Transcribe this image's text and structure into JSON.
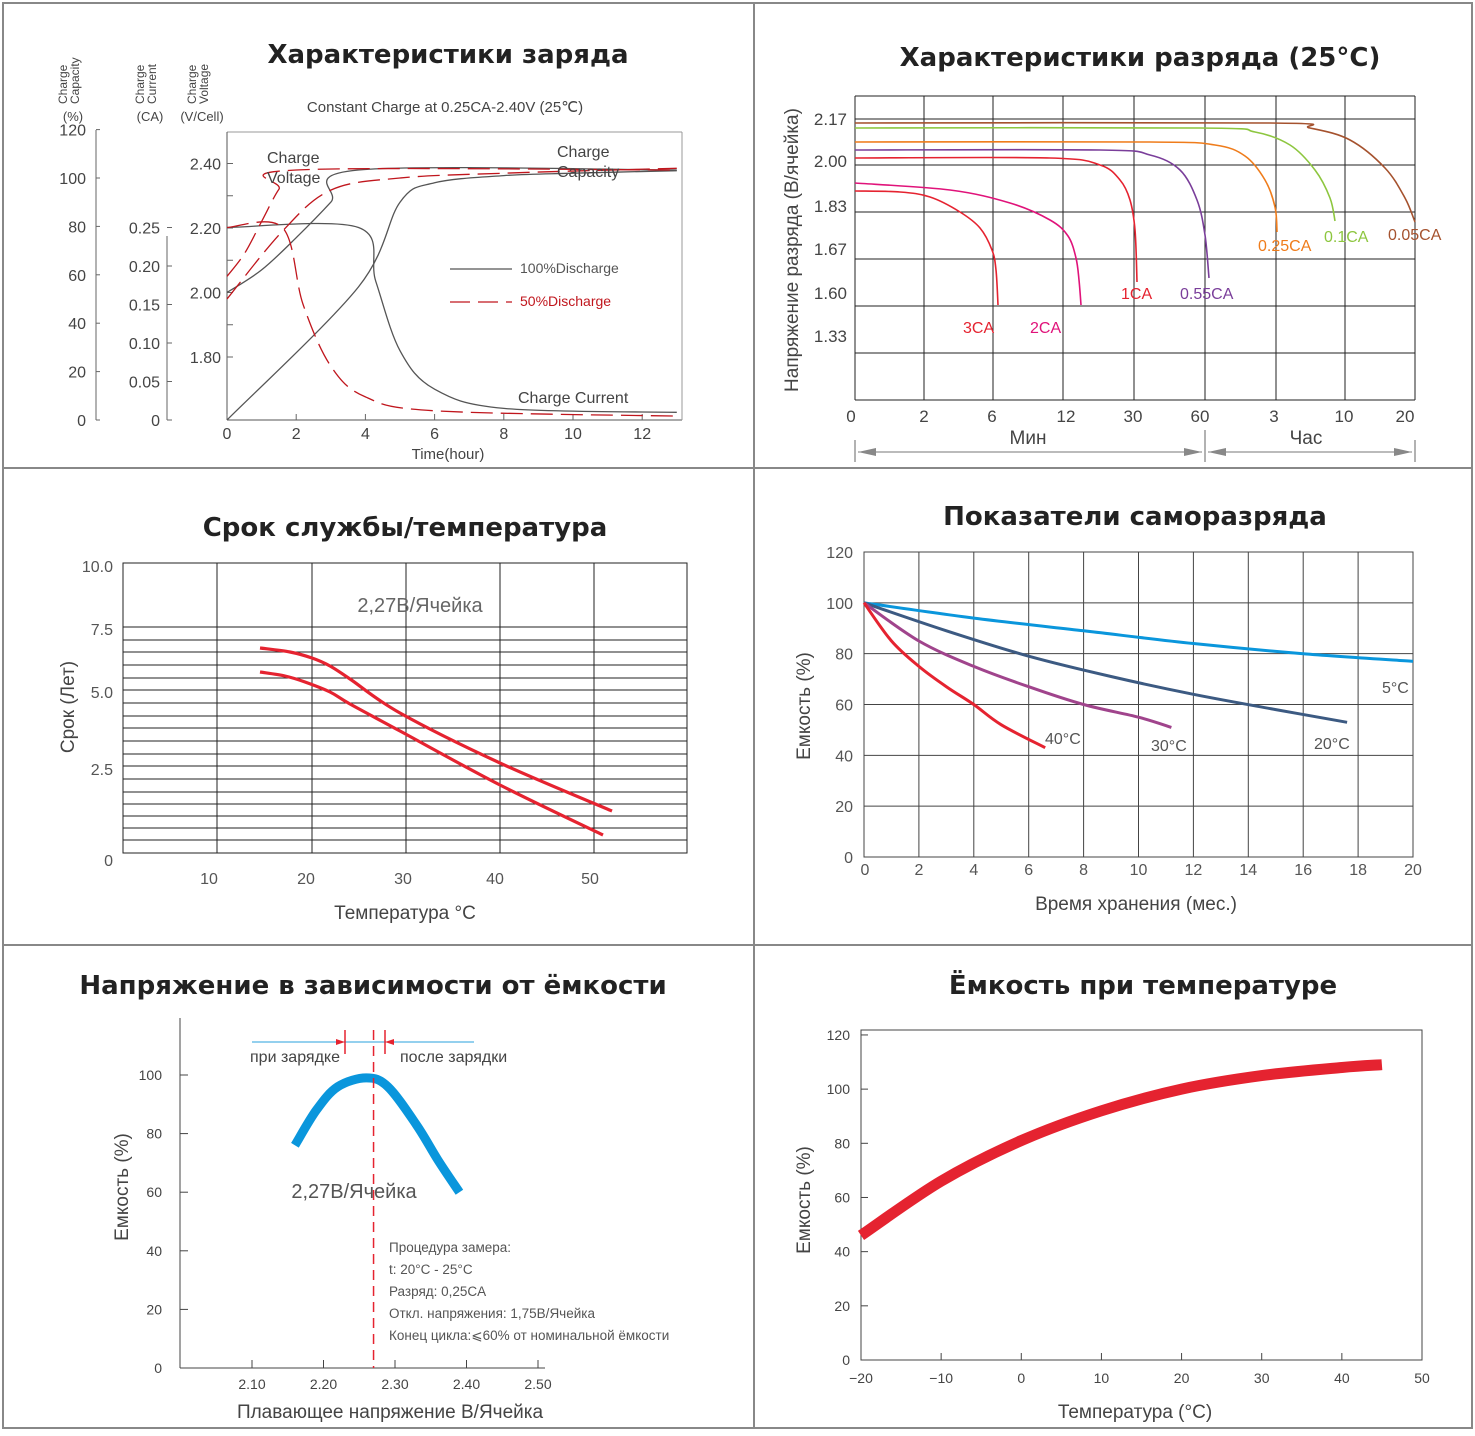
{
  "colors": {
    "border": "#888888",
    "grid": "#222222",
    "red": "#e52330",
    "blue": "#0a96dc",
    "ink": "#444444"
  },
  "panels": {
    "charge": {
      "title": "Характеристики заряда",
      "subtitle": "Constant Charge at 0.25CA-2.40V  (25℃)",
      "axis_headers": [
        {
          "lines": [
            "Charge",
            "Capacity",
            "(%)"
          ]
        },
        {
          "lines": [
            "Charge",
            "Current",
            "(CA)"
          ]
        },
        {
          "lines": [
            "Charge",
            "Voltage",
            "(V/Cell)"
          ]
        }
      ],
      "xlabel": "Time(hour)",
      "curve_labels": {
        "voltage": [
          "Charge",
          "Voltage"
        ],
        "capacity": [
          "Charge",
          "Capacity"
        ],
        "current": "Charge Current"
      },
      "legend": [
        {
          "label": "100%Discharge",
          "color": "#555555",
          "dash": false
        },
        {
          "label": "50%Discharge",
          "color": "#c0161d",
          "dash": true
        }
      ]
    },
    "discharge": {
      "title": "Характеристики разряда (25°C)",
      "ylabel": "Напряжение разряда (В/ячейка)",
      "ticks_y": [
        "2.17",
        "2.00",
        "1.83",
        "1.67",
        "1.60",
        "1.33"
      ],
      "ticks_x": [
        "0",
        "2",
        "6",
        "12",
        "30",
        "60",
        "3",
        "10",
        "20"
      ],
      "span_min": "Мин",
      "span_hr": "Час"
    },
    "life": {
      "title": "Срок службы/температура",
      "ylabel": "Срок (Лет)",
      "xlabel": "Температура °C",
      "annotation": "2,27В/Ячейка"
    },
    "selfdis": {
      "title": "Показатели саморазряда",
      "ylabel": "Емкость (%)",
      "xlabel": "Время хранения (мес.)"
    },
    "float": {
      "title": "Напряжение в зависимости от ёмкости",
      "ylabel": "Емкость (%)",
      "xlabel": "Плавающее напряжение В/Ячейка",
      "label_left": "при зарядке",
      "label_right": "после зарядки",
      "annotation": "2,27В/Ячейка",
      "notes": [
        "Процедура замера:",
        "t: 20°C - 25°C",
        "Разряд: 0,25CA",
        "Откл. напряжения: 1,75В/Ячейка",
        "Конец цикла:⩽60% от номинальной ёмкости"
      ]
    },
    "temp": {
      "title": "Ёмкость при температуре",
      "ylabel": "Емкость (%)",
      "xlabel": "Температура (°C)"
    }
  },
  "chart_data": [
    {
      "id": "charge",
      "type": "line",
      "title": "Характеристики заряда",
      "xlabel": "Time(hour)",
      "xlim": [
        0,
        13
      ],
      "x_ticks": [
        0,
        2,
        4,
        6,
        8,
        10,
        12
      ],
      "y_axes": [
        {
          "name": "Charge Capacity (%)",
          "ticks": [
            0,
            20,
            40,
            60,
            80,
            100,
            120
          ]
        },
        {
          "name": "Charge Current (CA)",
          "ticks": [
            "0",
            "0.05",
            "0.10",
            "0.15",
            "0.20",
            "0.25"
          ]
        },
        {
          "name": "Charge Voltage (V/Cell)",
          "ticks": [
            "1.80",
            "2.00",
            "2.20",
            "2.40"
          ]
        }
      ],
      "series": [
        {
          "name": "100%Discharge",
          "role": "Charge Voltage",
          "x": [
            0,
            1,
            2,
            3,
            3.8,
            13
          ],
          "y": [
            2.0,
            2.07,
            2.17,
            2.28,
            2.38,
            2.38
          ]
        },
        {
          "name": "100%Discharge",
          "role": "Charge Current",
          "x": [
            0,
            3.8,
            4.3,
            5,
            6,
            8,
            13
          ],
          "y": [
            0.25,
            0.25,
            0.18,
            0.09,
            0.04,
            0.015,
            0.01
          ]
        },
        {
          "name": "100%Discharge",
          "role": "Charge Capacity",
          "x": [
            0,
            3.8,
            5,
            6,
            8,
            10,
            13
          ],
          "y": [
            0,
            55,
            90,
            98,
            101,
            102,
            103
          ]
        },
        {
          "name": "50%Discharge",
          "role": "Charge Voltage",
          "x": [
            0,
            0.5,
            1,
            1.5,
            2,
            13
          ],
          "y": [
            2.05,
            2.12,
            2.22,
            2.32,
            2.38,
            2.38
          ]
        },
        {
          "name": "50%Discharge",
          "role": "Charge Current",
          "x": [
            0,
            1.6,
            2.2,
            3,
            4,
            6,
            13
          ],
          "y": [
            0.25,
            0.25,
            0.15,
            0.07,
            0.03,
            0.012,
            0.005
          ]
        },
        {
          "name": "50%Discharge",
          "role": "Charge Capacity",
          "x": [
            0,
            1.6,
            3,
            5,
            8,
            13
          ],
          "y": [
            50,
            78,
            95,
            100,
            102,
            104
          ]
        }
      ]
    },
    {
      "id": "discharge",
      "type": "line",
      "title": "Характеристики разряда (25°C)",
      "ylabel": "Напряжение разряда (В/ячейка)",
      "x_ticks": [
        "0",
        "2",
        "6",
        "12",
        "30",
        "60",
        "3",
        "10",
        "20"
      ],
      "x_units": [
        "Мин",
        "Мин",
        "Мин",
        "Мин",
        "Мин",
        "Мин",
        "Час",
        "Час",
        "Час"
      ],
      "y_ticks": [
        "2.17",
        "2.00",
        "1.83",
        "1.67",
        "1.60",
        "1.33"
      ],
      "series": [
        {
          "name": "3CA",
          "start_v": 1.89,
          "end_v": 1.6,
          "end_x": "6 Мин"
        },
        {
          "name": "2CA",
          "start_v": 1.91,
          "end_v": 1.6,
          "end_x": "13 Мин"
        },
        {
          "name": "1CA",
          "start_v": 2.01,
          "end_v": 1.67,
          "end_x": "30 Мин"
        },
        {
          "name": "0.55CA",
          "start_v": 2.04,
          "end_v": 1.67,
          "end_x": "60 Мин"
        },
        {
          "name": "0.25CA",
          "start_v": 2.08,
          "end_v": 1.83,
          "end_x": "3 Час"
        },
        {
          "name": "0.1CA",
          "start_v": 2.12,
          "end_v": 1.8,
          "end_x": "9 Час"
        },
        {
          "name": "0.05CA",
          "start_v": 2.15,
          "end_v": 1.8,
          "end_x": "20 Час"
        }
      ]
    },
    {
      "id": "life",
      "type": "line",
      "title": "Срок службы/температура",
      "xlabel": "Температура °C",
      "ylabel": "Срок (Лет)",
      "x_ticks": [
        10,
        20,
        30,
        40,
        50
      ],
      "y_ticks": [
        "0",
        "2.5",
        "5.0",
        "7.5",
        "10.0"
      ],
      "xlim": [
        0,
        60
      ],
      "ylim": [
        0,
        10
      ],
      "series": [
        {
          "name": "upper",
          "x": [
            15,
            18,
            22,
            25,
            30,
            40,
            52
          ],
          "y": [
            6.6,
            6.5,
            6.2,
            5.8,
            4.8,
            2.8,
            0.6
          ]
        },
        {
          "name": "lower",
          "x": [
            15,
            18,
            20,
            23,
            30,
            40,
            51
          ],
          "y": [
            5.7,
            5.5,
            5.2,
            4.8,
            3.6,
            1.8,
            0.0
          ]
        }
      ],
      "annotation": "2,27В/Ячейка"
    },
    {
      "id": "selfdis",
      "type": "line",
      "title": "Показатели саморазряда",
      "xlabel": "Время хранения (мес.)",
      "ylabel": "Емкость (%)",
      "xlim": [
        0,
        20
      ],
      "ylim": [
        0,
        120
      ],
      "x_ticks": [
        0,
        2,
        4,
        6,
        8,
        10,
        12,
        14,
        16,
        18,
        20
      ],
      "y_ticks": [
        0,
        20,
        40,
        60,
        80,
        100,
        120
      ],
      "series": [
        {
          "name": "5°C",
          "color": "#0a96dc",
          "x": [
            0,
            4,
            8,
            12,
            16,
            20
          ],
          "y": [
            100,
            94,
            89,
            84,
            80,
            77
          ]
        },
        {
          "name": "20°C",
          "color": "#3c5a82",
          "x": [
            0,
            3,
            6,
            9,
            12,
            15,
            17.6
          ],
          "y": [
            100,
            89,
            79,
            71,
            64,
            58,
            53
          ]
        },
        {
          "name": "30°C",
          "color": "#a0448c",
          "x": [
            0,
            2,
            4,
            6,
            8,
            10,
            11.2
          ],
          "y": [
            100,
            85,
            75,
            67,
            60,
            55,
            51
          ]
        },
        {
          "name": "40°C",
          "color": "#e52330",
          "x": [
            0,
            1,
            2,
            3,
            4,
            5,
            6.6
          ],
          "y": [
            100,
            85,
            75,
            67,
            60,
            52,
            43
          ]
        }
      ]
    },
    {
      "id": "float",
      "type": "line",
      "title": "Напряжение в зависимости от ёмкости",
      "xlabel": "Плавающее напряжение В/Ячейка",
      "ylabel": "Емкость (%)",
      "xlim": [
        2.0,
        2.5
      ],
      "ylim": [
        0,
        120
      ],
      "x_ticks": [
        "2.10",
        "2.20",
        "2.30",
        "2.40",
        "2.50"
      ],
      "y_ticks": [
        0,
        20,
        40,
        60,
        80,
        100
      ],
      "series": [
        {
          "name": "capacity",
          "x": [
            2.16,
            2.19,
            2.22,
            2.26,
            2.29,
            2.33,
            2.36,
            2.39
          ],
          "y": [
            76,
            88,
            96,
            99,
            96,
            83,
            71,
            60
          ]
        }
      ],
      "marker_x": 2.27
    },
    {
      "id": "temp",
      "type": "line",
      "title": "Ёмкость при температуре",
      "xlabel": "Температура (°C)",
      "ylabel": "Емкость (%)",
      "xlim": [
        -20,
        50
      ],
      "ylim": [
        0,
        120
      ],
      "x_ticks": [
        "−20",
        "−10",
        "0",
        "10",
        "20",
        "30",
        "40",
        "50"
      ],
      "y_ticks": [
        0,
        20,
        40,
        60,
        80,
        100,
        120
      ],
      "series": [
        {
          "name": "capacity",
          "x": [
            -20,
            -10,
            0,
            10,
            20,
            30,
            40,
            45
          ],
          "y": [
            46,
            66,
            81,
            92,
            100,
            105,
            108,
            109
          ]
        }
      ]
    }
  ]
}
